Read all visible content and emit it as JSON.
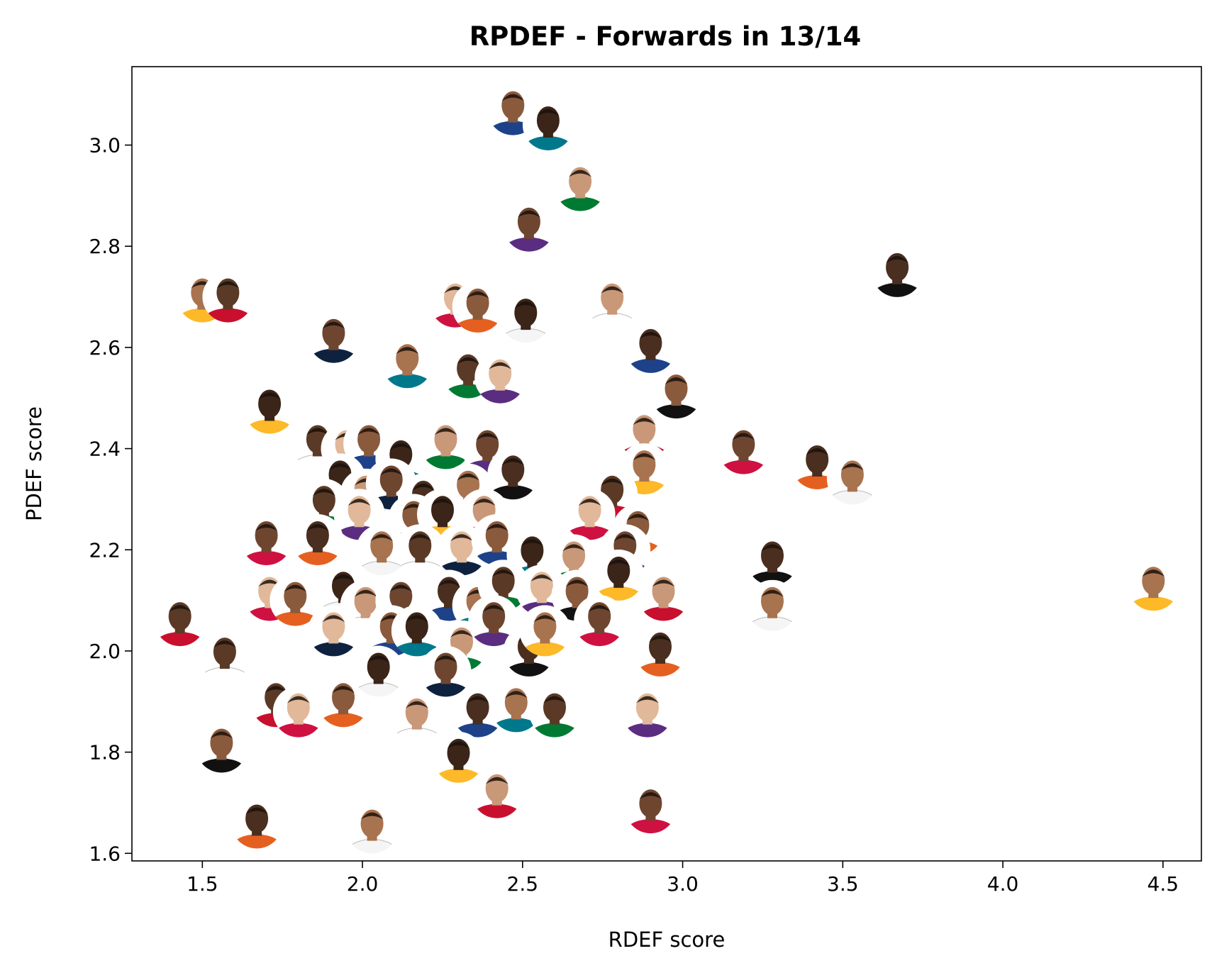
{
  "chart_data": {
    "type": "scatter",
    "title": "RPDEF - Forwards in 13/14",
    "xlabel": "RDEF score",
    "ylabel": "PDEF score",
    "xlim": [
      1.28,
      4.62
    ],
    "ylim": [
      1.585,
      3.155
    ],
    "xticks": [
      "1.5",
      "2.0",
      "2.5",
      "3.0",
      "3.5",
      "4.0",
      "4.5"
    ],
    "yticks": [
      "1.6",
      "1.8",
      "2.0",
      "2.2",
      "2.4",
      "2.6",
      "2.8",
      "3.0"
    ],
    "grid": false,
    "legend": "none",
    "marker": "player headshot",
    "points": [
      {
        "x": 2.47,
        "y": 3.07
      },
      {
        "x": 2.58,
        "y": 3.04
      },
      {
        "x": 2.68,
        "y": 2.92
      },
      {
        "x": 2.52,
        "y": 2.84
      },
      {
        "x": 3.67,
        "y": 2.75
      },
      {
        "x": 1.5,
        "y": 2.7
      },
      {
        "x": 1.58,
        "y": 2.7
      },
      {
        "x": 2.29,
        "y": 2.69
      },
      {
        "x": 2.36,
        "y": 2.68
      },
      {
        "x": 2.51,
        "y": 2.66
      },
      {
        "x": 2.78,
        "y": 2.69
      },
      {
        "x": 1.91,
        "y": 2.62
      },
      {
        "x": 2.9,
        "y": 2.6
      },
      {
        "x": 2.14,
        "y": 2.57
      },
      {
        "x": 2.33,
        "y": 2.55
      },
      {
        "x": 2.43,
        "y": 2.54
      },
      {
        "x": 2.98,
        "y": 2.51
      },
      {
        "x": 1.71,
        "y": 2.48
      },
      {
        "x": 2.88,
        "y": 2.43
      },
      {
        "x": 3.19,
        "y": 2.4
      },
      {
        "x": 3.42,
        "y": 2.37
      },
      {
        "x": 3.53,
        "y": 2.34
      },
      {
        "x": 1.86,
        "y": 2.41
      },
      {
        "x": 1.95,
        "y": 2.4
      },
      {
        "x": 2.02,
        "y": 2.41
      },
      {
        "x": 2.12,
        "y": 2.38
      },
      {
        "x": 2.26,
        "y": 2.41
      },
      {
        "x": 2.39,
        "y": 2.4
      },
      {
        "x": 2.47,
        "y": 2.35
      },
      {
        "x": 2.88,
        "y": 2.36
      },
      {
        "x": 2.78,
        "y": 2.31
      },
      {
        "x": 2.71,
        "y": 2.27
      },
      {
        "x": 2.86,
        "y": 2.24
      },
      {
        "x": 1.93,
        "y": 2.34
      },
      {
        "x": 2.01,
        "y": 2.31
      },
      {
        "x": 2.09,
        "y": 2.33
      },
      {
        "x": 2.19,
        "y": 2.3
      },
      {
        "x": 2.33,
        "y": 2.32
      },
      {
        "x": 1.88,
        "y": 2.29
      },
      {
        "x": 1.99,
        "y": 2.27
      },
      {
        "x": 2.16,
        "y": 2.26
      },
      {
        "x": 2.25,
        "y": 2.27
      },
      {
        "x": 2.38,
        "y": 2.27
      },
      {
        "x": 1.7,
        "y": 2.22
      },
      {
        "x": 1.86,
        "y": 2.22
      },
      {
        "x": 2.06,
        "y": 2.2
      },
      {
        "x": 2.18,
        "y": 2.2
      },
      {
        "x": 2.31,
        "y": 2.2
      },
      {
        "x": 2.42,
        "y": 2.22
      },
      {
        "x": 2.53,
        "y": 2.19
      },
      {
        "x": 2.66,
        "y": 2.18
      },
      {
        "x": 2.82,
        "y": 2.2
      },
      {
        "x": 3.28,
        "y": 2.18
      },
      {
        "x": 4.47,
        "y": 2.13
      },
      {
        "x": 1.43,
        "y": 2.06
      },
      {
        "x": 1.71,
        "y": 2.11
      },
      {
        "x": 1.79,
        "y": 2.1
      },
      {
        "x": 1.94,
        "y": 2.12
      },
      {
        "x": 2.01,
        "y": 2.09
      },
      {
        "x": 2.12,
        "y": 2.1
      },
      {
        "x": 2.27,
        "y": 2.11
      },
      {
        "x": 2.36,
        "y": 2.09
      },
      {
        "x": 2.44,
        "y": 2.13
      },
      {
        "x": 2.56,
        "y": 2.12
      },
      {
        "x": 2.67,
        "y": 2.11
      },
      {
        "x": 2.8,
        "y": 2.15
      },
      {
        "x": 2.94,
        "y": 2.11
      },
      {
        "x": 2.74,
        "y": 2.06
      },
      {
        "x": 2.93,
        "y": 2.0
      },
      {
        "x": 3.28,
        "y": 2.09
      },
      {
        "x": 1.57,
        "y": 1.99
      },
      {
        "x": 1.91,
        "y": 2.04
      },
      {
        "x": 2.09,
        "y": 2.04
      },
      {
        "x": 2.17,
        "y": 2.04
      },
      {
        "x": 2.31,
        "y": 2.01
      },
      {
        "x": 2.41,
        "y": 2.06
      },
      {
        "x": 2.52,
        "y": 2.0
      },
      {
        "x": 2.57,
        "y": 2.04
      },
      {
        "x": 1.73,
        "y": 1.9
      },
      {
        "x": 1.8,
        "y": 1.88
      },
      {
        "x": 1.94,
        "y": 1.9
      },
      {
        "x": 2.05,
        "y": 1.96
      },
      {
        "x": 2.17,
        "y": 1.87
      },
      {
        "x": 2.26,
        "y": 1.96
      },
      {
        "x": 2.36,
        "y": 1.88
      },
      {
        "x": 2.48,
        "y": 1.89
      },
      {
        "x": 2.6,
        "y": 1.88
      },
      {
        "x": 2.89,
        "y": 1.88
      },
      {
        "x": 1.56,
        "y": 1.81
      },
      {
        "x": 2.3,
        "y": 1.79
      },
      {
        "x": 2.42,
        "y": 1.72
      },
      {
        "x": 2.9,
        "y": 1.69
      },
      {
        "x": 1.67,
        "y": 1.66
      },
      {
        "x": 2.03,
        "y": 1.65
      }
    ]
  }
}
